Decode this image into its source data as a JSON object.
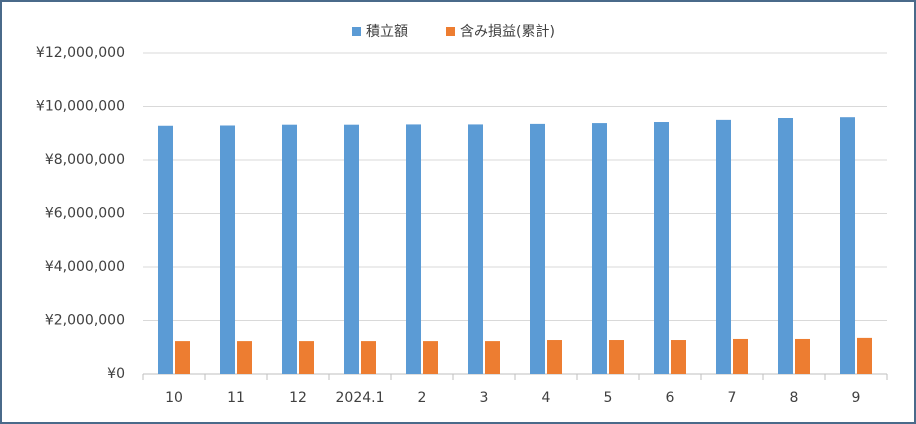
{
  "chart_data": {
    "type": "bar",
    "categories": [
      "10",
      "11",
      "12",
      "2024.1",
      "2",
      "3",
      "4",
      "5",
      "6",
      "7",
      "8",
      "9"
    ],
    "series": [
      {
        "name": "積立額",
        "color": "#5b9bd5",
        "values": [
          9280000,
          9290000,
          9320000,
          9320000,
          9330000,
          9330000,
          9350000,
          9380000,
          9420000,
          9500000,
          9570000,
          9600000
        ]
      },
      {
        "name": "含み損益(累計)",
        "color": "#ed7d31",
        "values": [
          1230000,
          1230000,
          1230000,
          1230000,
          1230000,
          1230000,
          1270000,
          1270000,
          1270000,
          1310000,
          1310000,
          1350000
        ]
      }
    ],
    "ylim": [
      0,
      12000000
    ],
    "yticks": [
      {
        "value": 0,
        "label": "¥0"
      },
      {
        "value": 2000000,
        "label": "¥2,000,000"
      },
      {
        "value": 4000000,
        "label": "¥4,000,000"
      },
      {
        "value": 6000000,
        "label": "¥6,000,000"
      },
      {
        "value": 8000000,
        "label": "¥8,000,000"
      },
      {
        "value": 10000000,
        "label": "¥10,000,000"
      },
      {
        "value": 12000000,
        "label": "¥12,000,000"
      }
    ],
    "grid": true,
    "legend": "top"
  }
}
